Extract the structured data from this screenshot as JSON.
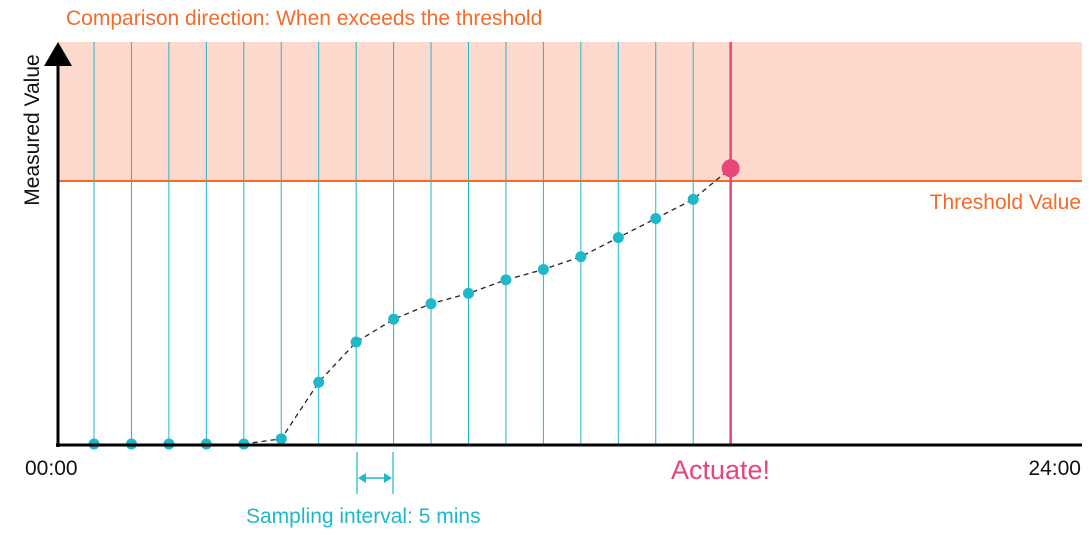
{
  "diagram": {
    "title": "Comparison direction: When exceeds the threshold",
    "y_axis_label": "Measured Value",
    "threshold_label": "Threshold Value",
    "x_start_label": "00:00",
    "x_end_label": "24:00",
    "actuate_label": "Actuate!",
    "interval_label": "Sampling interval: 5 mins",
    "colors": {
      "threshold": "#f26b2a",
      "exceed_region": "#fdd8cc",
      "samples": "#1fb8c9",
      "actuate": "#e8457a",
      "axis": "#000000"
    }
  },
  "chart_data": {
    "type": "scatter",
    "description_free": true,
    "threshold": 0.66,
    "ylim": [
      0,
      1
    ],
    "samples": [
      0,
      0,
      0,
      0,
      0,
      0.013,
      0.155,
      0.256,
      0.313,
      0.352,
      0.378,
      0.412,
      0.438,
      0.47,
      0.518,
      0.566,
      0.614,
      0.692
    ],
    "trigger_index": 17
  }
}
